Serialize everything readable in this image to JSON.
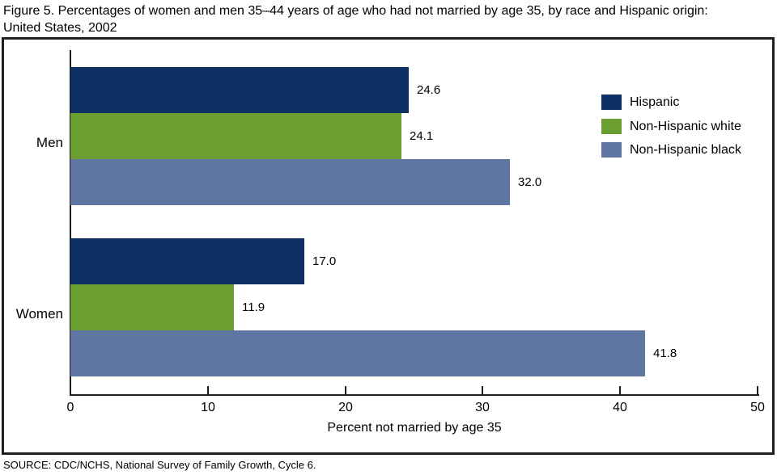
{
  "title": "Figure 5. Percentages of women and men 35–44 years of age who had not married by age 35, by race and Hispanic origin: United States, 2002",
  "source": "SOURCE: CDC/NCHS, National Survey of Family Growth, Cycle 6.",
  "colors": {
    "hispanic": "#0c3162",
    "non_hispanic_white": "#6a9e30",
    "non_hispanic_black": "#5f76a3",
    "axis": "#1f1f1f",
    "background": "#ffffff"
  },
  "chart_data": {
    "type": "bar",
    "orientation": "horizontal",
    "title": "Figure 5. Percentages of women and men 35–44 years of age who had not married by age 35, by race and Hispanic origin: United States, 2002",
    "categories": [
      "Men",
      "Women"
    ],
    "series": [
      {
        "name": "Hispanic",
        "color": "#0c3162",
        "values": [
          24.6,
          17.0
        ],
        "value_labels": [
          "24.6",
          "17.0"
        ]
      },
      {
        "name": "Non-Hispanic white",
        "color": "#6a9e30",
        "values": [
          24.1,
          11.9
        ],
        "value_labels": [
          "24.1",
          "11.9"
        ]
      },
      {
        "name": "Non-Hispanic black",
        "color": "#5f76a3",
        "values": [
          32.0,
          41.8
        ],
        "value_labels": [
          "32.0",
          "41.8"
        ]
      }
    ],
    "xlabel": "Percent not married by age 35",
    "xlim": [
      0,
      50
    ],
    "xticks": [
      0,
      10,
      20,
      30,
      40,
      50
    ],
    "grid": false,
    "legend_position": "top-right",
    "value_labels_shown": true
  }
}
